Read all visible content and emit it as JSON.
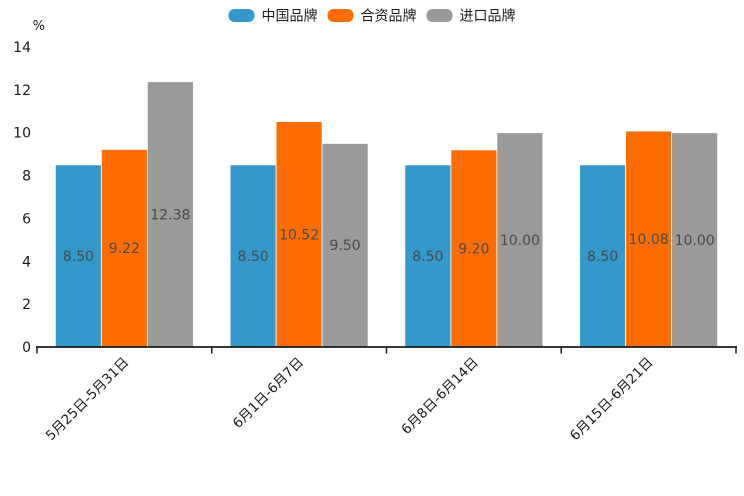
{
  "chart_data": {
    "type": "bar",
    "title": "",
    "unit_label": "%",
    "categories": [
      "5月25日-5月31日",
      "6月1日-6月7日",
      "6月8日-6月14日",
      "6月15日-6月21日"
    ],
    "series": [
      {
        "name": "中国品牌",
        "color": "#3398cc",
        "values": [
          8.5,
          8.5,
          8.5,
          8.5
        ],
        "labels": [
          "8.50",
          "8.50",
          "8.50",
          "8.50"
        ]
      },
      {
        "name": "合资品牌",
        "color": "#ff6d00",
        "values": [
          9.22,
          10.52,
          9.2,
          10.08
        ],
        "labels": [
          "9.22",
          "10.52",
          "9.20",
          "10.08"
        ]
      },
      {
        "name": "进口品牌",
        "color": "#9a9a9a",
        "values": [
          12.38,
          9.5,
          10.0,
          10.0
        ],
        "labels": [
          "12.38",
          "9.50",
          "10.00",
          "10.00"
        ]
      }
    ],
    "ylim": [
      0,
      14
    ],
    "yticks": [
      0,
      2,
      4,
      6,
      8,
      10,
      12,
      14
    ],
    "ytick_labels": [
      "0",
      "2",
      "4",
      "6",
      "8",
      "10",
      "12",
      "14"
    ],
    "grid": false,
    "legend_position": "top-center",
    "xlabel": "",
    "ylabel": "%",
    "colors": {
      "axis": "#1a1a1a",
      "tick_text": "#1a1a1a",
      "value_label": "#4a4a4a",
      "background": "#ffffff"
    }
  }
}
